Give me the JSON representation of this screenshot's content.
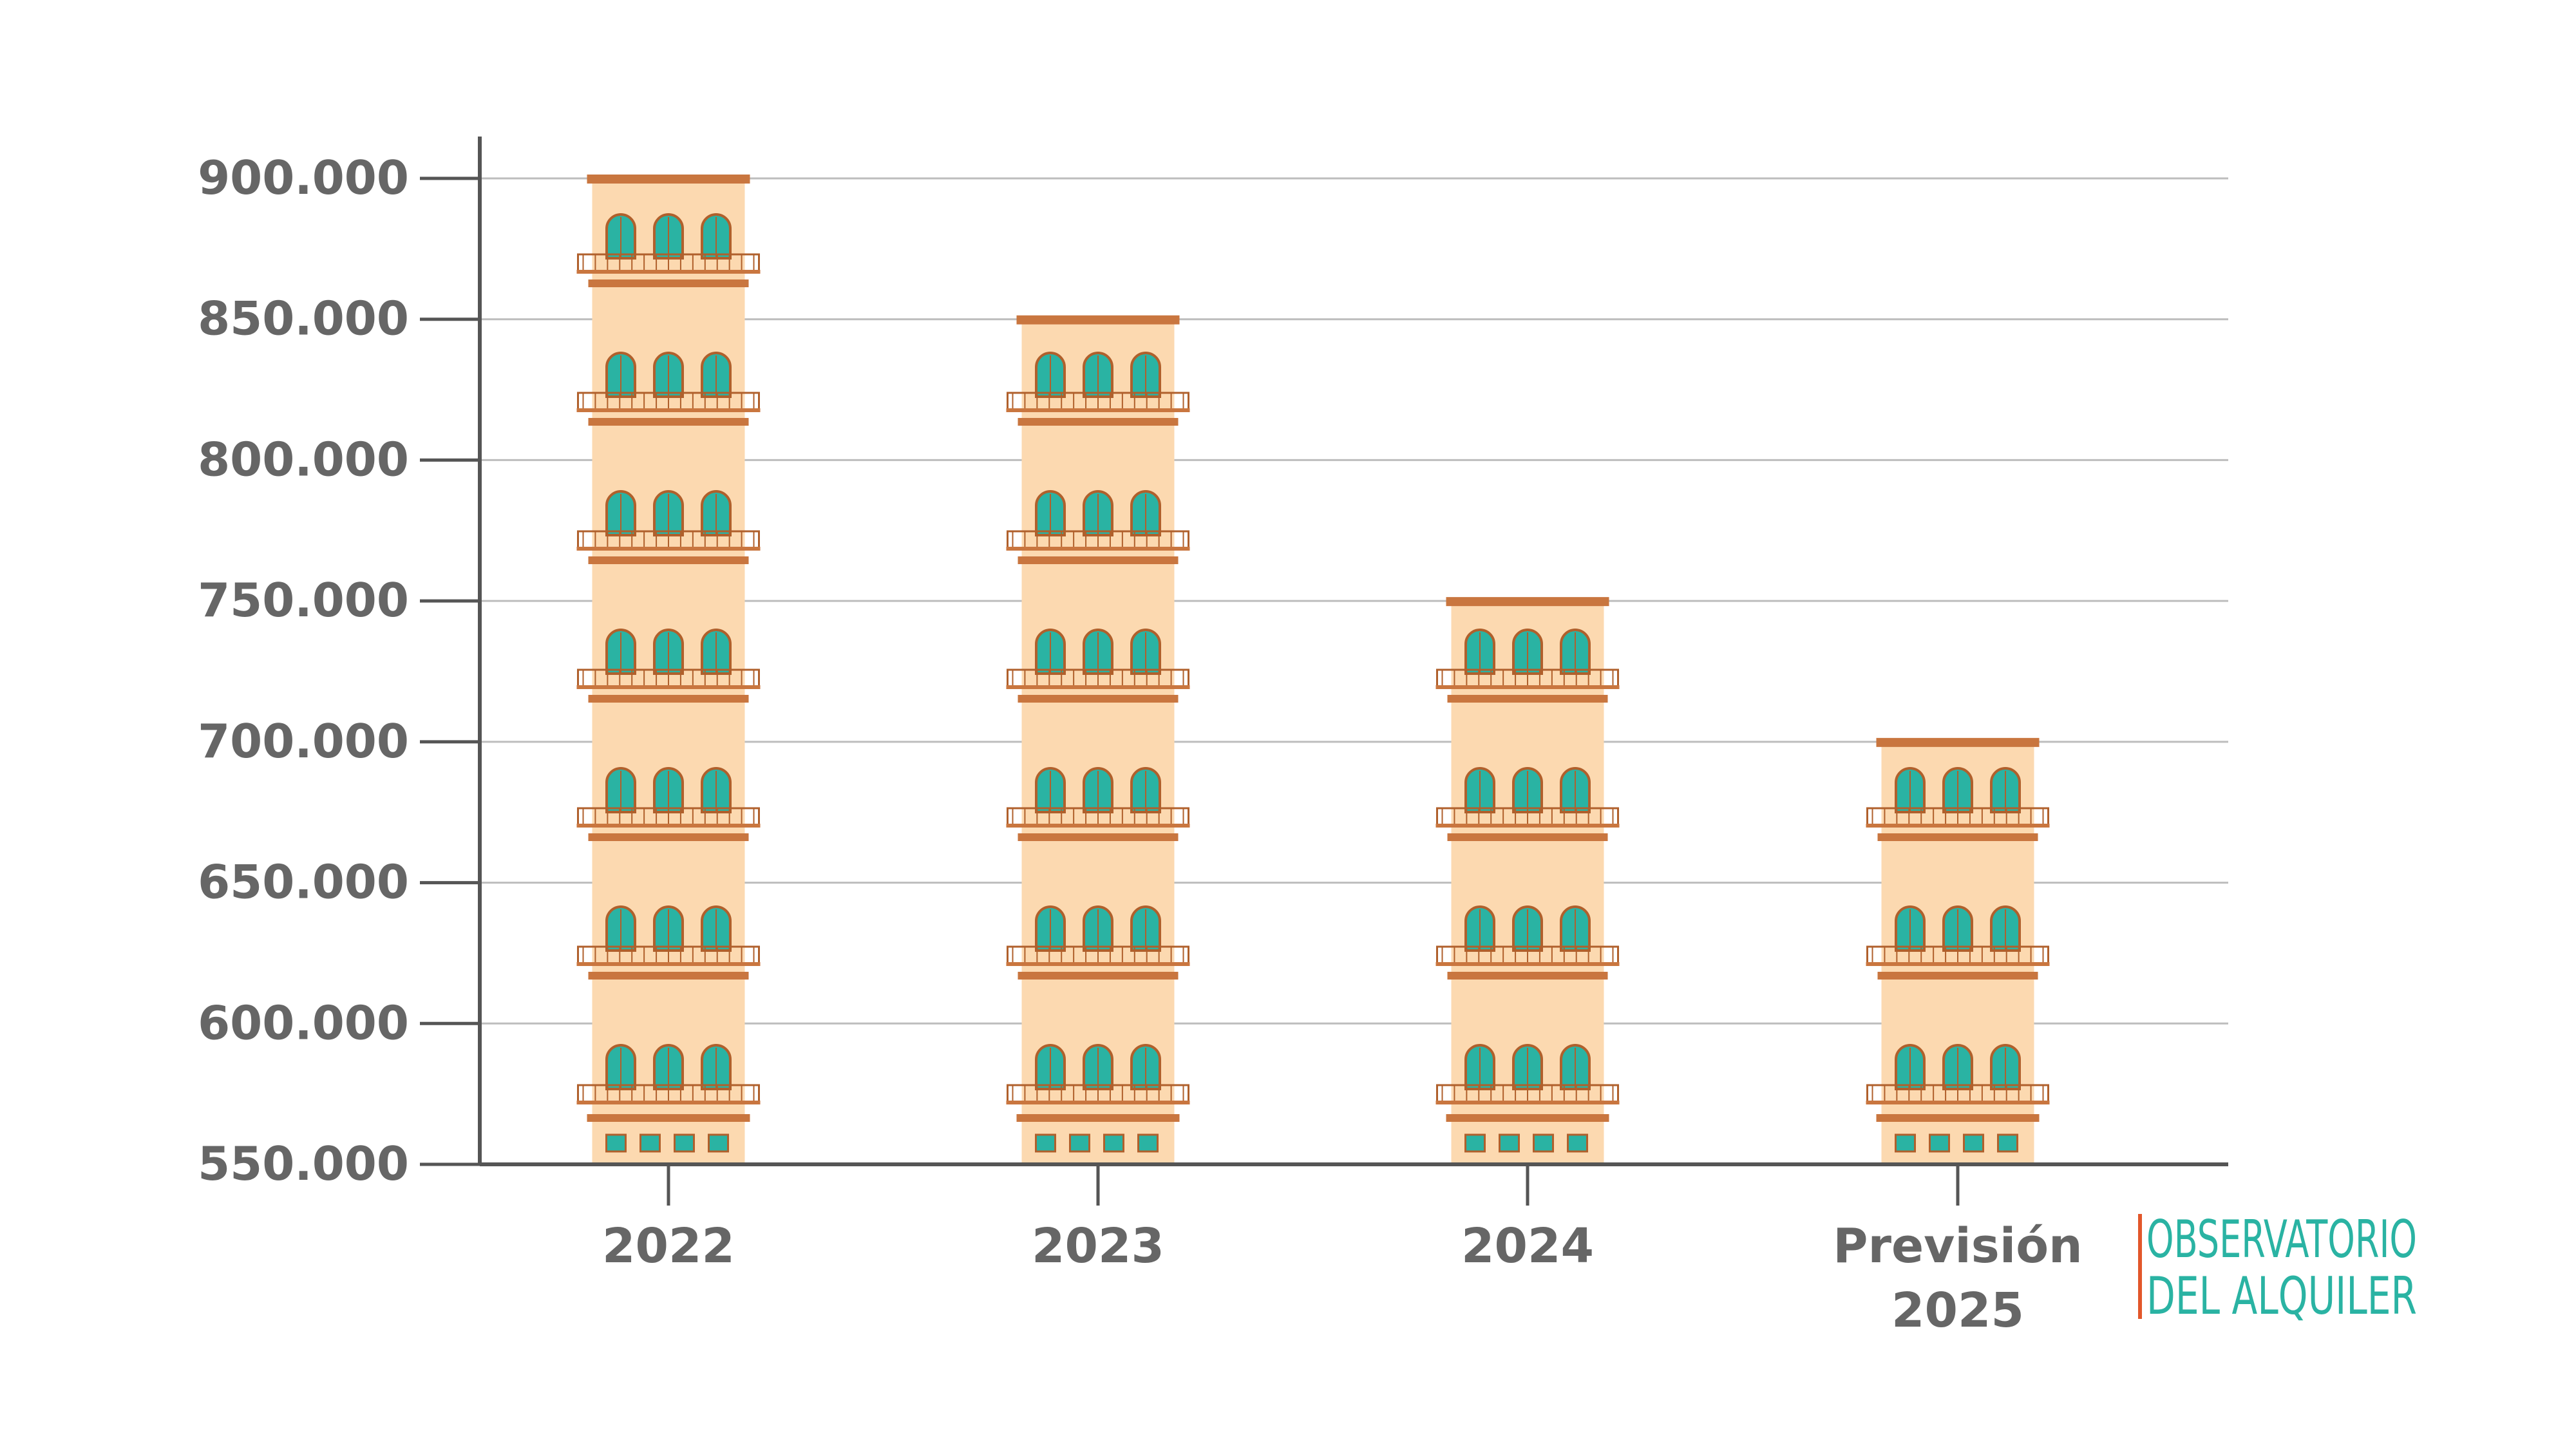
{
  "colors": {
    "axis": "#555555",
    "grid": "#bdbdbd",
    "label": "#666666",
    "building_body": "#fcd9b0",
    "building_trim": "#c9763f",
    "window": "#2ab3a3",
    "window_frame": "#b0602c",
    "logo_text": "#2ab3a3",
    "logo_accent": "#e2572b"
  },
  "chart_data": {
    "type": "bar",
    "categories": [
      "2022",
      "2023",
      "2024",
      "Previsión 2025"
    ],
    "category_lines": [
      [
        "2022"
      ],
      [
        "2023"
      ],
      [
        "2024"
      ],
      [
        "Previsión",
        "2025"
      ]
    ],
    "values": [
      900000,
      850000,
      750000,
      700000
    ],
    "ylim": [
      550000,
      900000
    ],
    "y_ticks": [
      550000,
      600000,
      650000,
      700000,
      750000,
      800000,
      850000,
      900000
    ],
    "y_tick_labels": [
      "550.000",
      "600.000",
      "650.000",
      "700.000",
      "750.000",
      "800.000",
      "850.000",
      "900.000"
    ],
    "grid": true,
    "bar_style": "building",
    "title": "",
    "xlabel": "",
    "ylabel": ""
  },
  "logo": {
    "line1": "OBSERVATORIO",
    "line2": "DEL ALQUILER"
  }
}
